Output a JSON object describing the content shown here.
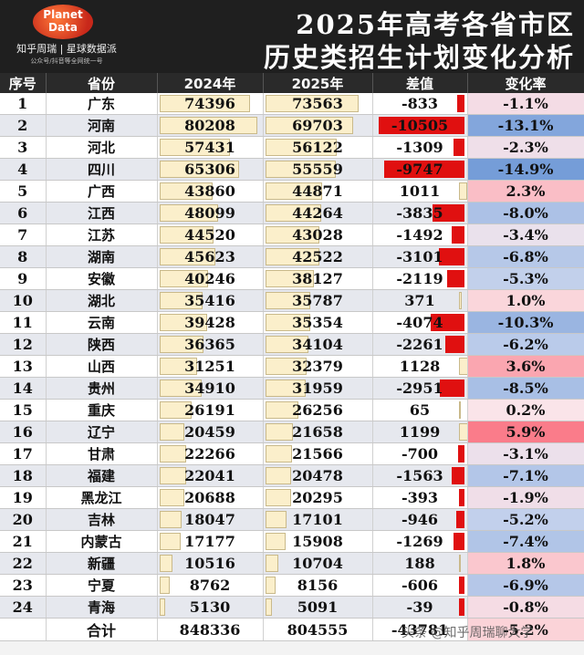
{
  "logo": {
    "line1": "Planet",
    "line2": "Data"
  },
  "brand": {
    "name": "知乎周瑞 | 星球数据派",
    "sub": "公众号/抖音等全网统一号"
  },
  "title": {
    "line1": "2025年高考各省市区",
    "line2": "历史类招生计划变化分析"
  },
  "headers": [
    "序号",
    "省份",
    "2024年",
    "2025年",
    "差值",
    "变化率"
  ],
  "rows": [
    {
      "no": "1",
      "prov": "广东",
      "y2024": "74396",
      "y2025": "73563",
      "diff": "-833",
      "rate": "-1.1%",
      "v24": 74396,
      "v25": 73563,
      "d": -833,
      "r": -1.1
    },
    {
      "no": "2",
      "prov": "河南",
      "y2024": "80208",
      "y2025": "69703",
      "diff": "-10505",
      "rate": "-13.1%",
      "v24": 80208,
      "v25": 69703,
      "d": -10505,
      "r": -13.1
    },
    {
      "no": "3",
      "prov": "河北",
      "y2024": "57431",
      "y2025": "56122",
      "diff": "-1309",
      "rate": "-2.3%",
      "v24": 57431,
      "v25": 56122,
      "d": -1309,
      "r": -2.3
    },
    {
      "no": "4",
      "prov": "四川",
      "y2024": "65306",
      "y2025": "55559",
      "diff": "-9747",
      "rate": "-14.9%",
      "v24": 65306,
      "v25": 55559,
      "d": -9747,
      "r": -14.9
    },
    {
      "no": "5",
      "prov": "广西",
      "y2024": "43860",
      "y2025": "44871",
      "diff": "1011",
      "rate": "2.3%",
      "v24": 43860,
      "v25": 44871,
      "d": 1011,
      "r": 2.3
    },
    {
      "no": "6",
      "prov": "江西",
      "y2024": "48099",
      "y2025": "44264",
      "diff": "-3835",
      "rate": "-8.0%",
      "v24": 48099,
      "v25": 44264,
      "d": -3835,
      "r": -8.0
    },
    {
      "no": "7",
      "prov": "江苏",
      "y2024": "44520",
      "y2025": "43028",
      "diff": "-1492",
      "rate": "-3.4%",
      "v24": 44520,
      "v25": 43028,
      "d": -1492,
      "r": -3.4
    },
    {
      "no": "8",
      "prov": "湖南",
      "y2024": "45623",
      "y2025": "42522",
      "diff": "-3101",
      "rate": "-6.8%",
      "v24": 45623,
      "v25": 42522,
      "d": -3101,
      "r": -6.8
    },
    {
      "no": "9",
      "prov": "安徽",
      "y2024": "40246",
      "y2025": "38127",
      "diff": "-2119",
      "rate": "-5.3%",
      "v24": 40246,
      "v25": 38127,
      "d": -2119,
      "r": -5.3
    },
    {
      "no": "10",
      "prov": "湖北",
      "y2024": "35416",
      "y2025": "35787",
      "diff": "371",
      "rate": "1.0%",
      "v24": 35416,
      "v25": 35787,
      "d": 371,
      "r": 1.0
    },
    {
      "no": "11",
      "prov": "云南",
      "y2024": "39428",
      "y2025": "35354",
      "diff": "-4074",
      "rate": "-10.3%",
      "v24": 39428,
      "v25": 35354,
      "d": -4074,
      "r": -10.3
    },
    {
      "no": "12",
      "prov": "陕西",
      "y2024": "36365",
      "y2025": "34104",
      "diff": "-2261",
      "rate": "-6.2%",
      "v24": 36365,
      "v25": 34104,
      "d": -2261,
      "r": -6.2
    },
    {
      "no": "13",
      "prov": "山西",
      "y2024": "31251",
      "y2025": "32379",
      "diff": "1128",
      "rate": "3.6%",
      "v24": 31251,
      "v25": 32379,
      "d": 1128,
      "r": 3.6
    },
    {
      "no": "14",
      "prov": "贵州",
      "y2024": "34910",
      "y2025": "31959",
      "diff": "-2951",
      "rate": "-8.5%",
      "v24": 34910,
      "v25": 31959,
      "d": -2951,
      "r": -8.5
    },
    {
      "no": "15",
      "prov": "重庆",
      "y2024": "26191",
      "y2025": "26256",
      "diff": "65",
      "rate": "0.2%",
      "v24": 26191,
      "v25": 26256,
      "d": 65,
      "r": 0.2
    },
    {
      "no": "16",
      "prov": "辽宁",
      "y2024": "20459",
      "y2025": "21658",
      "diff": "1199",
      "rate": "5.9%",
      "v24": 20459,
      "v25": 21658,
      "d": 1199,
      "r": 5.9
    },
    {
      "no": "17",
      "prov": "甘肃",
      "y2024": "22266",
      "y2025": "21566",
      "diff": "-700",
      "rate": "-3.1%",
      "v24": 22266,
      "v25": 21566,
      "d": -700,
      "r": -3.1
    },
    {
      "no": "18",
      "prov": "福建",
      "y2024": "22041",
      "y2025": "20478",
      "diff": "-1563",
      "rate": "-7.1%",
      "v24": 22041,
      "v25": 20478,
      "d": -1563,
      "r": -7.1
    },
    {
      "no": "19",
      "prov": "黑龙江",
      "y2024": "20688",
      "y2025": "20295",
      "diff": "-393",
      "rate": "-1.9%",
      "v24": 20688,
      "v25": 20295,
      "d": -393,
      "r": -1.9
    },
    {
      "no": "20",
      "prov": "吉林",
      "y2024": "18047",
      "y2025": "17101",
      "diff": "-946",
      "rate": "-5.2%",
      "v24": 18047,
      "v25": 17101,
      "d": -946,
      "r": -5.2
    },
    {
      "no": "21",
      "prov": "内蒙古",
      "y2024": "17177",
      "y2025": "15908",
      "diff": "-1269",
      "rate": "-7.4%",
      "v24": 17177,
      "v25": 15908,
      "d": -1269,
      "r": -7.4
    },
    {
      "no": "22",
      "prov": "新疆",
      "y2024": "10516",
      "y2025": "10704",
      "diff": "188",
      "rate": "1.8%",
      "v24": 10516,
      "v25": 10704,
      "d": 188,
      "r": 1.8
    },
    {
      "no": "23",
      "prov": "宁夏",
      "y2024": "8762",
      "y2025": "8156",
      "diff": "-606",
      "rate": "-6.9%",
      "v24": 8762,
      "v25": 8156,
      "d": -606,
      "r": -6.9
    },
    {
      "no": "24",
      "prov": "青海",
      "y2024": "5130",
      "y2025": "5091",
      "diff": "-39",
      "rate": "-0.8%",
      "v24": 5130,
      "v25": 5091,
      "d": -39,
      "r": -0.8
    }
  ],
  "total": {
    "label": "合计",
    "y2024": "848336",
    "y2025": "804555",
    "diff": "-43781",
    "rate": "-5.2%"
  },
  "watermark": "头条 @知乎周瑞聊大学",
  "colors": {
    "neg_bar": "#e01010",
    "pos_rate": "#f2a0a8",
    "neg_rate": "#7f9fd6"
  }
}
